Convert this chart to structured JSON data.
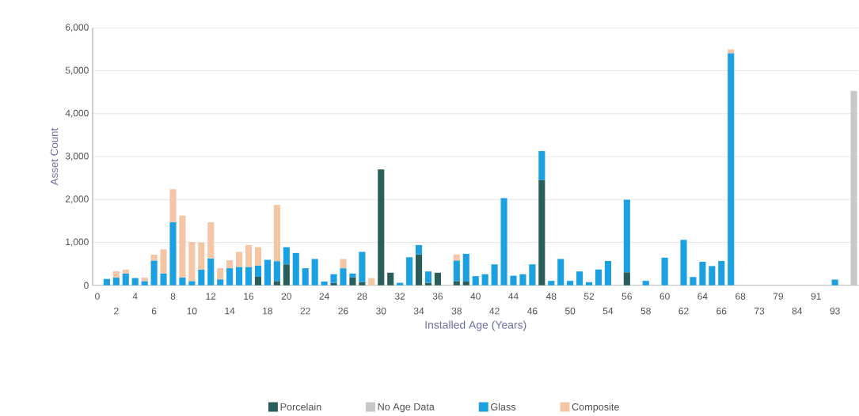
{
  "chart_data": {
    "type": "bar",
    "stacked": true,
    "xlabel": "Installed Age (Years)",
    "ylabel": "Asset Count",
    "categories": [
      "0",
      null,
      "2",
      null,
      "4",
      null,
      "6",
      null,
      "8",
      null,
      "10",
      null,
      "12",
      null,
      "14",
      null,
      "16",
      null,
      "18",
      null,
      "20",
      null,
      "22",
      null,
      "24",
      null,
      "26",
      null,
      "28",
      null,
      "30",
      null,
      "32",
      null,
      "34",
      null,
      "36",
      null,
      "38",
      null,
      "40",
      null,
      "42",
      null,
      "44",
      null,
      "46",
      null,
      "48",
      null,
      "50",
      null,
      "52",
      null,
      "54",
      null,
      "56",
      null,
      "58",
      null,
      "60",
      null,
      "62",
      null,
      "64",
      null,
      "66",
      null,
      "68",
      null,
      "73",
      null,
      "79",
      null,
      "84",
      null,
      "91",
      null,
      "93",
      null,
      null
    ],
    "series": [
      {
        "name": "Porcelain",
        "color": "#2a5e5a",
        "values": [
          null,
          null,
          null,
          null,
          null,
          null,
          null,
          null,
          null,
          null,
          null,
          null,
          null,
          null,
          null,
          null,
          null,
          200,
          null,
          100,
          490,
          null,
          null,
          null,
          null,
          60,
          null,
          185,
          80,
          null,
          2700,
          295,
          null,
          null,
          720,
          60,
          295,
          null,
          100,
          90,
          null,
          null,
          null,
          null,
          null,
          null,
          null,
          2455,
          null,
          null,
          null,
          null,
          null,
          null,
          null,
          null,
          305,
          null,
          null,
          null,
          null,
          null,
          null,
          null,
          null,
          null,
          null,
          null,
          null,
          null,
          null,
          null,
          null,
          null,
          null,
          null,
          null,
          null,
          null,
          null,
          null
        ]
      },
      {
        "name": "No Age Data",
        "color": "#c8c8c8",
        "values": [
          null,
          null,
          null,
          null,
          null,
          null,
          null,
          null,
          null,
          null,
          null,
          null,
          null,
          null,
          null,
          null,
          null,
          null,
          null,
          null,
          null,
          null,
          null,
          null,
          null,
          null,
          null,
          null,
          null,
          null,
          null,
          null,
          null,
          null,
          null,
          null,
          null,
          null,
          null,
          null,
          null,
          null,
          null,
          null,
          null,
          null,
          null,
          null,
          null,
          null,
          null,
          null,
          null,
          null,
          null,
          null,
          null,
          null,
          null,
          null,
          null,
          null,
          null,
          null,
          null,
          null,
          null,
          null,
          null,
          null,
          null,
          null,
          null,
          null,
          null,
          null,
          null,
          null,
          null,
          null,
          4530
        ]
      },
      {
        "name": "Glass",
        "color": "#1ba1e2",
        "values": [
          null,
          150,
          180,
          275,
          170,
          100,
          580,
          275,
          1470,
          185,
          100,
          370,
          630,
          140,
          400,
          430,
          430,
          260,
          595,
          465,
          400,
          755,
          400,
          615,
          90,
          200,
          400,
          90,
          700,
          null,
          null,
          null,
          60,
          655,
          220,
          265,
          null,
          null,
          480,
          645,
          215,
          260,
          490,
          2035,
          225,
          260,
          490,
          675,
          105,
          615,
          105,
          325,
          75,
          370,
          570,
          null,
          1690,
          null,
          105,
          null,
          645,
          null,
          1060,
          195,
          550,
          450,
          570,
          5410,
          null,
          null,
          null,
          null,
          null,
          null,
          null,
          null,
          null,
          null,
          135,
          null,
          null
        ]
      },
      {
        "name": "Composite",
        "color": "#f5c6a5",
        "values": [
          null,
          null,
          150,
          90,
          null,
          80,
          135,
          565,
          770,
          1440,
          910,
          630,
          840,
          260,
          185,
          350,
          510,
          430,
          null,
          1310,
          null,
          null,
          null,
          null,
          null,
          null,
          215,
          null,
          null,
          170,
          null,
          null,
          null,
          null,
          null,
          null,
          null,
          null,
          140,
          null,
          null,
          null,
          null,
          null,
          null,
          null,
          null,
          null,
          null,
          null,
          null,
          null,
          null,
          null,
          null,
          null,
          null,
          null,
          null,
          null,
          null,
          null,
          null,
          null,
          null,
          null,
          null,
          90,
          null,
          null,
          null,
          null,
          null,
          null,
          null,
          null,
          null,
          null,
          null,
          null,
          null
        ]
      }
    ],
    "ylim": [
      0,
      6000
    ],
    "yticks": [
      0,
      {
        "value": 1000,
        "label": "1,000"
      },
      {
        "value": 2000,
        "label": "2,000"
      },
      {
        "value": 3000,
        "label": "3,000"
      },
      {
        "value": 4000,
        "label": "4,000"
      },
      {
        "value": 5000,
        "label": "5,000"
      },
      {
        "value": 6000,
        "label": "6,000"
      }
    ],
    "grid": "y",
    "legend": "bottom"
  }
}
